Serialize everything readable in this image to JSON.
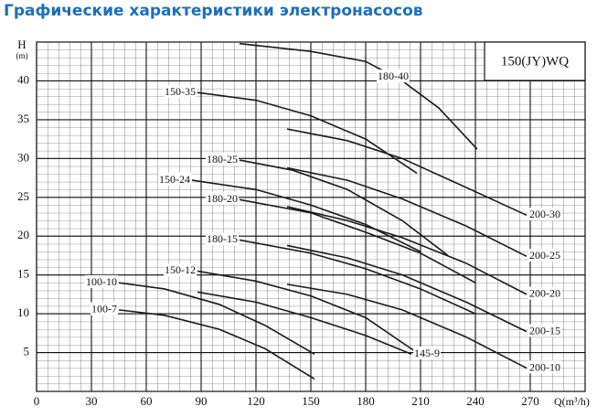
{
  "header": {
    "title": "Графические характеристики электронасосов"
  },
  "chart_data": {
    "type": "line",
    "model": "150(JY)WQ",
    "y_label": "H",
    "y_unit": "(m)",
    "x_label": "Q(m³/h)",
    "xlim": [
      0,
      300
    ],
    "ylim": [
      0,
      45
    ],
    "xticks": [
      0,
      30,
      60,
      90,
      120,
      150,
      180,
      210,
      240,
      270
    ],
    "yticks": [
      5,
      10,
      15,
      20,
      25,
      30,
      35,
      40
    ],
    "grid": true,
    "color": "#1a1a1a",
    "series": [
      {
        "name": "180-40",
        "x": [
          111,
          150,
          180,
          200,
          220,
          241
        ],
        "values": [
          44.8,
          43.8,
          42.5,
          40,
          36.5,
          31.2
        ]
      },
      {
        "name": "150-35",
        "x": [
          88,
          120,
          150,
          180,
          208
        ],
        "values": [
          38.5,
          37.5,
          35.5,
          32.5,
          28.1
        ]
      },
      {
        "name": "200-30",
        "x": [
          137,
          170,
          200,
          230,
          268
        ],
        "values": [
          33.8,
          32.3,
          30,
          26.8,
          22.7
        ]
      },
      {
        "name": "180-25",
        "x": [
          111,
          140,
          170,
          200,
          225
        ],
        "values": [
          29.8,
          28.5,
          26,
          22,
          17.5
        ]
      },
      {
        "name": "200-25",
        "x": [
          137,
          170,
          200,
          235,
          268
        ],
        "values": [
          28.8,
          27.2,
          24.8,
          21.3,
          17.4
        ]
      },
      {
        "name": "150-24",
        "x": [
          85,
          120,
          150,
          180,
          210
        ],
        "values": [
          27.2,
          26,
          24,
          21.5,
          18
        ]
      },
      {
        "name": "180-20",
        "x": [
          111,
          150,
          180,
          210,
          240
        ],
        "values": [
          24.7,
          23,
          20.5,
          17.8,
          14
        ]
      },
      {
        "name": "200-20",
        "x": [
          137,
          170,
          200,
          235,
          268
        ],
        "values": [
          23.8,
          22,
          19.8,
          16.5,
          12.5
        ]
      },
      {
        "name": "180-15",
        "x": [
          111,
          150,
          180,
          210,
          240
        ],
        "values": [
          19.5,
          17.8,
          15.8,
          13.2,
          10
        ]
      },
      {
        "name": "200-15",
        "x": [
          137,
          170,
          200,
          235,
          268
        ],
        "values": [
          18.8,
          17.2,
          15,
          11.5,
          7.7
        ]
      },
      {
        "name": "150-12",
        "x": [
          88,
          120,
          150,
          180,
          208
        ],
        "values": [
          15.5,
          14.2,
          12.3,
          9.5,
          5
        ]
      },
      {
        "name": "200-10",
        "x": [
          137,
          170,
          200,
          235,
          268
        ],
        "values": [
          13.8,
          12.5,
          10.5,
          7,
          3
        ]
      },
      {
        "name": "145-9",
        "x": [
          88,
          120,
          150,
          180,
          205
        ],
        "values": [
          12.8,
          11.5,
          9.5,
          7.2,
          4.8
        ]
      },
      {
        "name": "100-10",
        "x": [
          45,
          70,
          100,
          125,
          152
        ],
        "values": [
          14,
          13.2,
          11.2,
          8.5,
          4.8
        ]
      },
      {
        "name": "100-7",
        "x": [
          45,
          70,
          100,
          125,
          152
        ],
        "values": [
          10.5,
          9.8,
          8,
          5.5,
          1.6
        ]
      }
    ]
  }
}
